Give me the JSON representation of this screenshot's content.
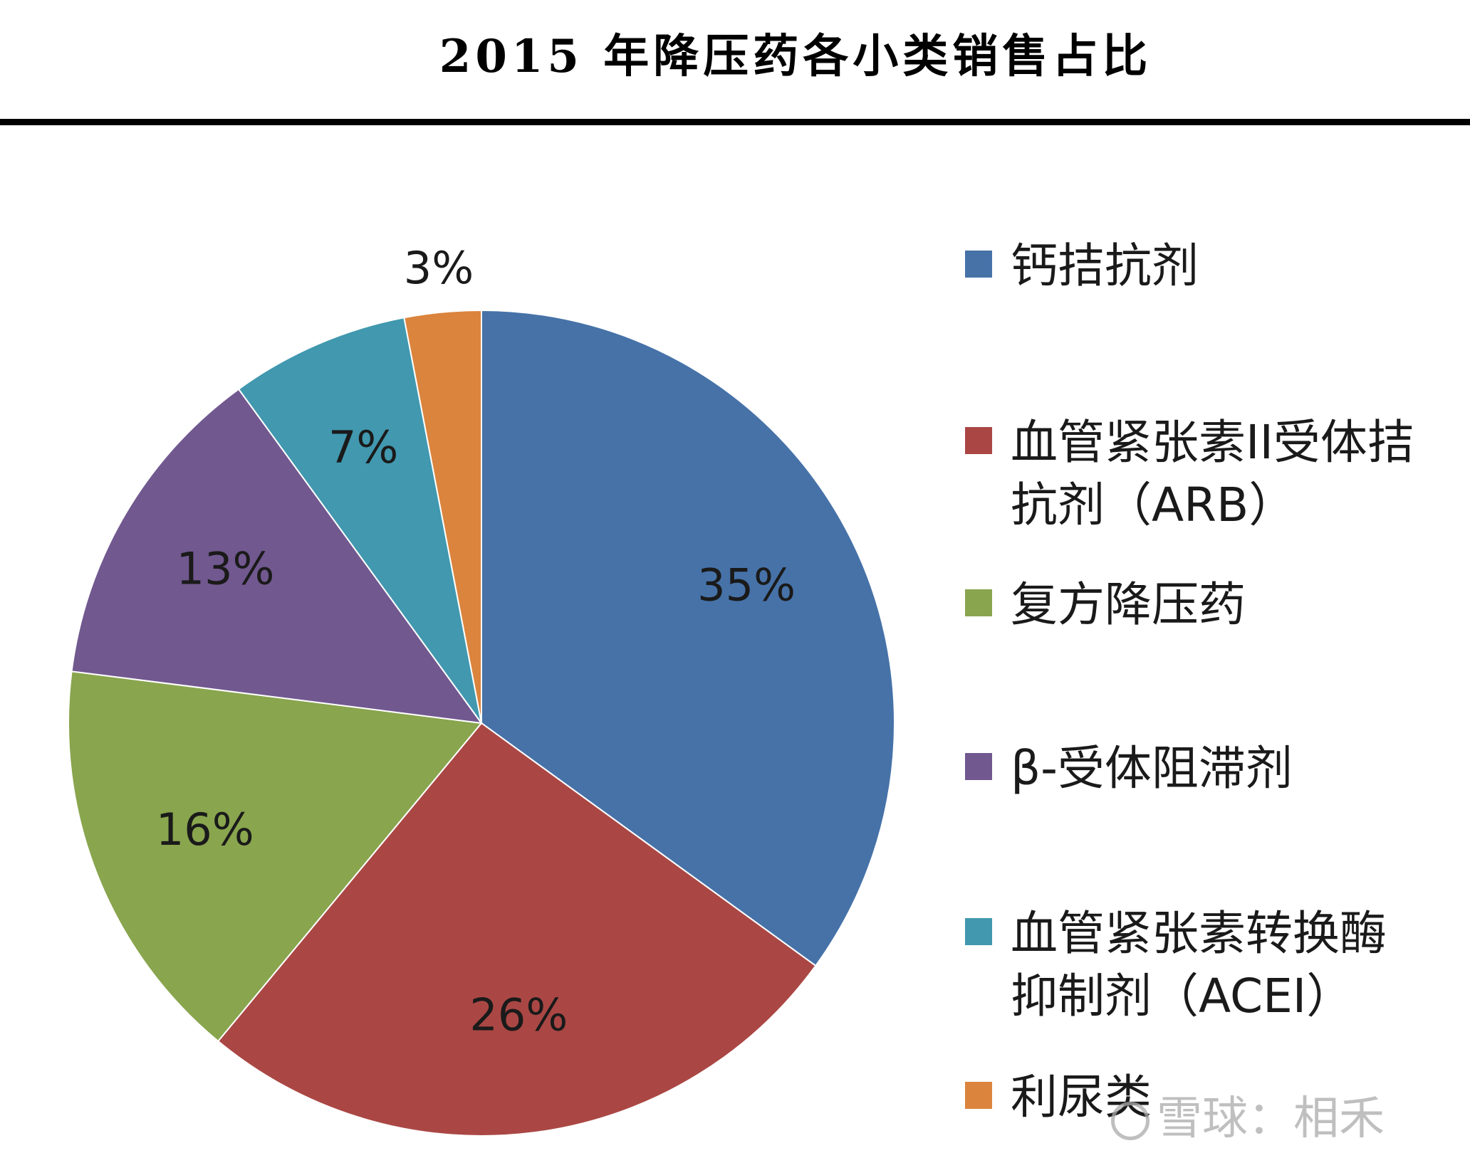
{
  "chart_data": {
    "type": "pie",
    "title": "2015 年降压药各小类销售占比",
    "categories": [
      "钙拮抗剂",
      "血管紧张素II受体拮抗剂（ARB）",
      "复方降压药",
      "β-受体阻滞剂",
      "血管紧张素转换酶抑制剂（ACEI）",
      "利尿类"
    ],
    "values": [
      35,
      26,
      16,
      13,
      7,
      3
    ],
    "labels": [
      "35%",
      "26%",
      "16%",
      "13%",
      "7%",
      "3%"
    ],
    "colors": [
      "#4672A8",
      "#AA4744",
      "#89A54E",
      "#71588F",
      "#4198AF",
      "#DB843D"
    ],
    "legend_position": "right",
    "start_direction": "top-clockwise"
  },
  "watermark": {
    "icon": "snowball-logo-icon",
    "text": "雪球：相禾"
  }
}
